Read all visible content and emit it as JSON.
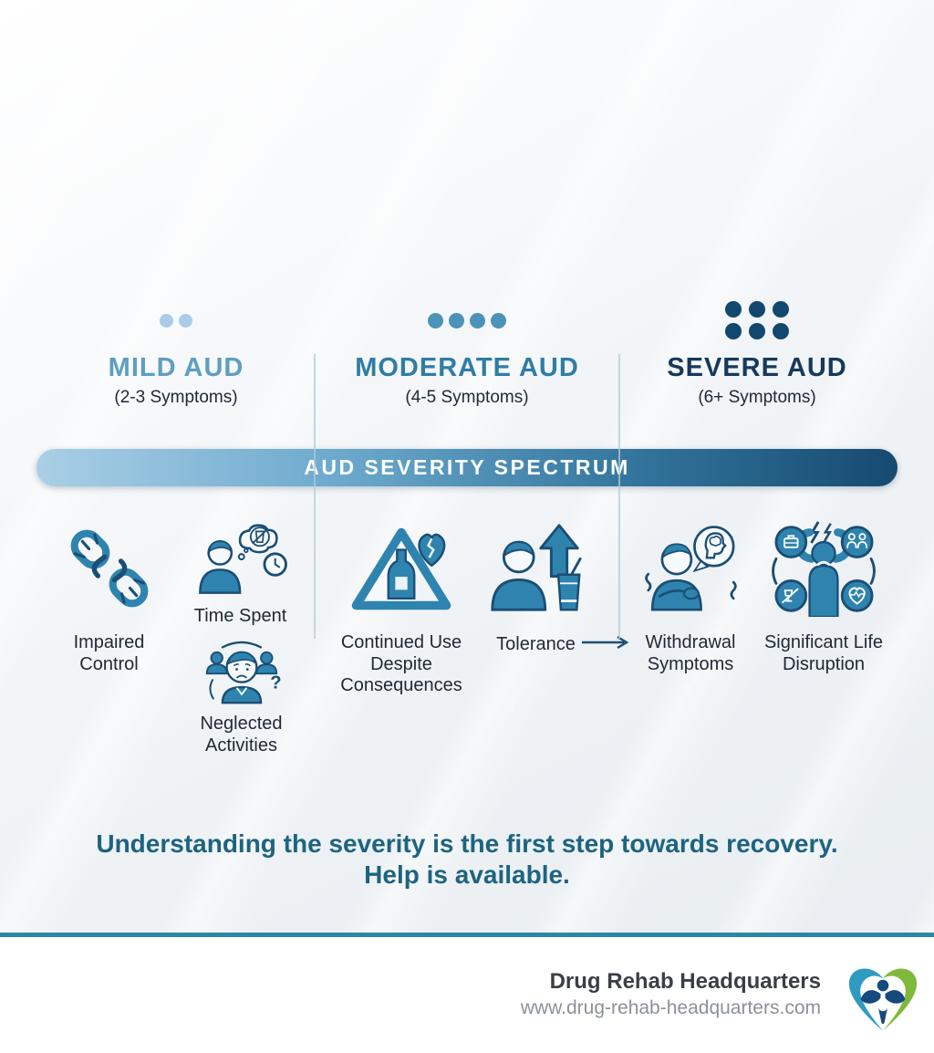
{
  "columns": [
    {
      "title": "MILD AUD",
      "subtitle": "(2-3 Symptoms)",
      "dots": 2
    },
    {
      "title": "MODERATE AUD",
      "subtitle": "(4-5 Symptoms)",
      "dots": 4
    },
    {
      "title": "SEVERE AUD",
      "subtitle": "(6+ Symptoms)",
      "dots": 6
    }
  ],
  "banner": {
    "label": "AUD SEVERITY SPECTRUM"
  },
  "symptoms": {
    "impaired_control": "Impaired Control",
    "time_spent": "Time Spent",
    "neglected_activities": "Neglected Activities",
    "continued_use": "Continued Use Despite Consequences",
    "tolerance": "Tolerance",
    "withdrawal": "Withdrawal Symptoms",
    "life_disruption": "Significant Life Disruption"
  },
  "message": {
    "line1": "Understanding the severity is the first step towards recovery.",
    "line2": "Help is available."
  },
  "footer": {
    "brand": "Drug Rehab Headquarters",
    "website": "www.drug-rehab-headquarters.com"
  },
  "icons": {
    "impaired_control": "broken-chain-icon",
    "time_spent": "thinking-about-drink-clock-icon",
    "neglected_activities": "sad-person-ignored-friends-icon",
    "continued_use": "warning-triangle-bottle-broken-heart-icon",
    "tolerance": "person-rising-arrow-drink-icon",
    "withdrawal": "shaking-person-brain-bubble-icon",
    "life_disruption": "distressed-person-life-areas-icon",
    "flow": "arrow-right-icon",
    "logo": "heart-person-logo-icon"
  },
  "colors": {
    "mild_accent": "#5d9fc0",
    "moderate_accent": "#2f7da5",
    "severe_accent": "#16395c",
    "mild_dot": "#a9cde8",
    "moderate_dot": "#4b93b8",
    "severe_dot": "#12486e",
    "banner_gradient_start": "#aacfe6",
    "banner_gradient_end": "#164a70",
    "icon_fill": "#2e84ae",
    "icon_outline": "#1b4e74",
    "message_text": "#1d6480",
    "footer_rule": "#2b87a8",
    "logo_blue": "#2f9bc0",
    "logo_green": "#7fb93c"
  }
}
